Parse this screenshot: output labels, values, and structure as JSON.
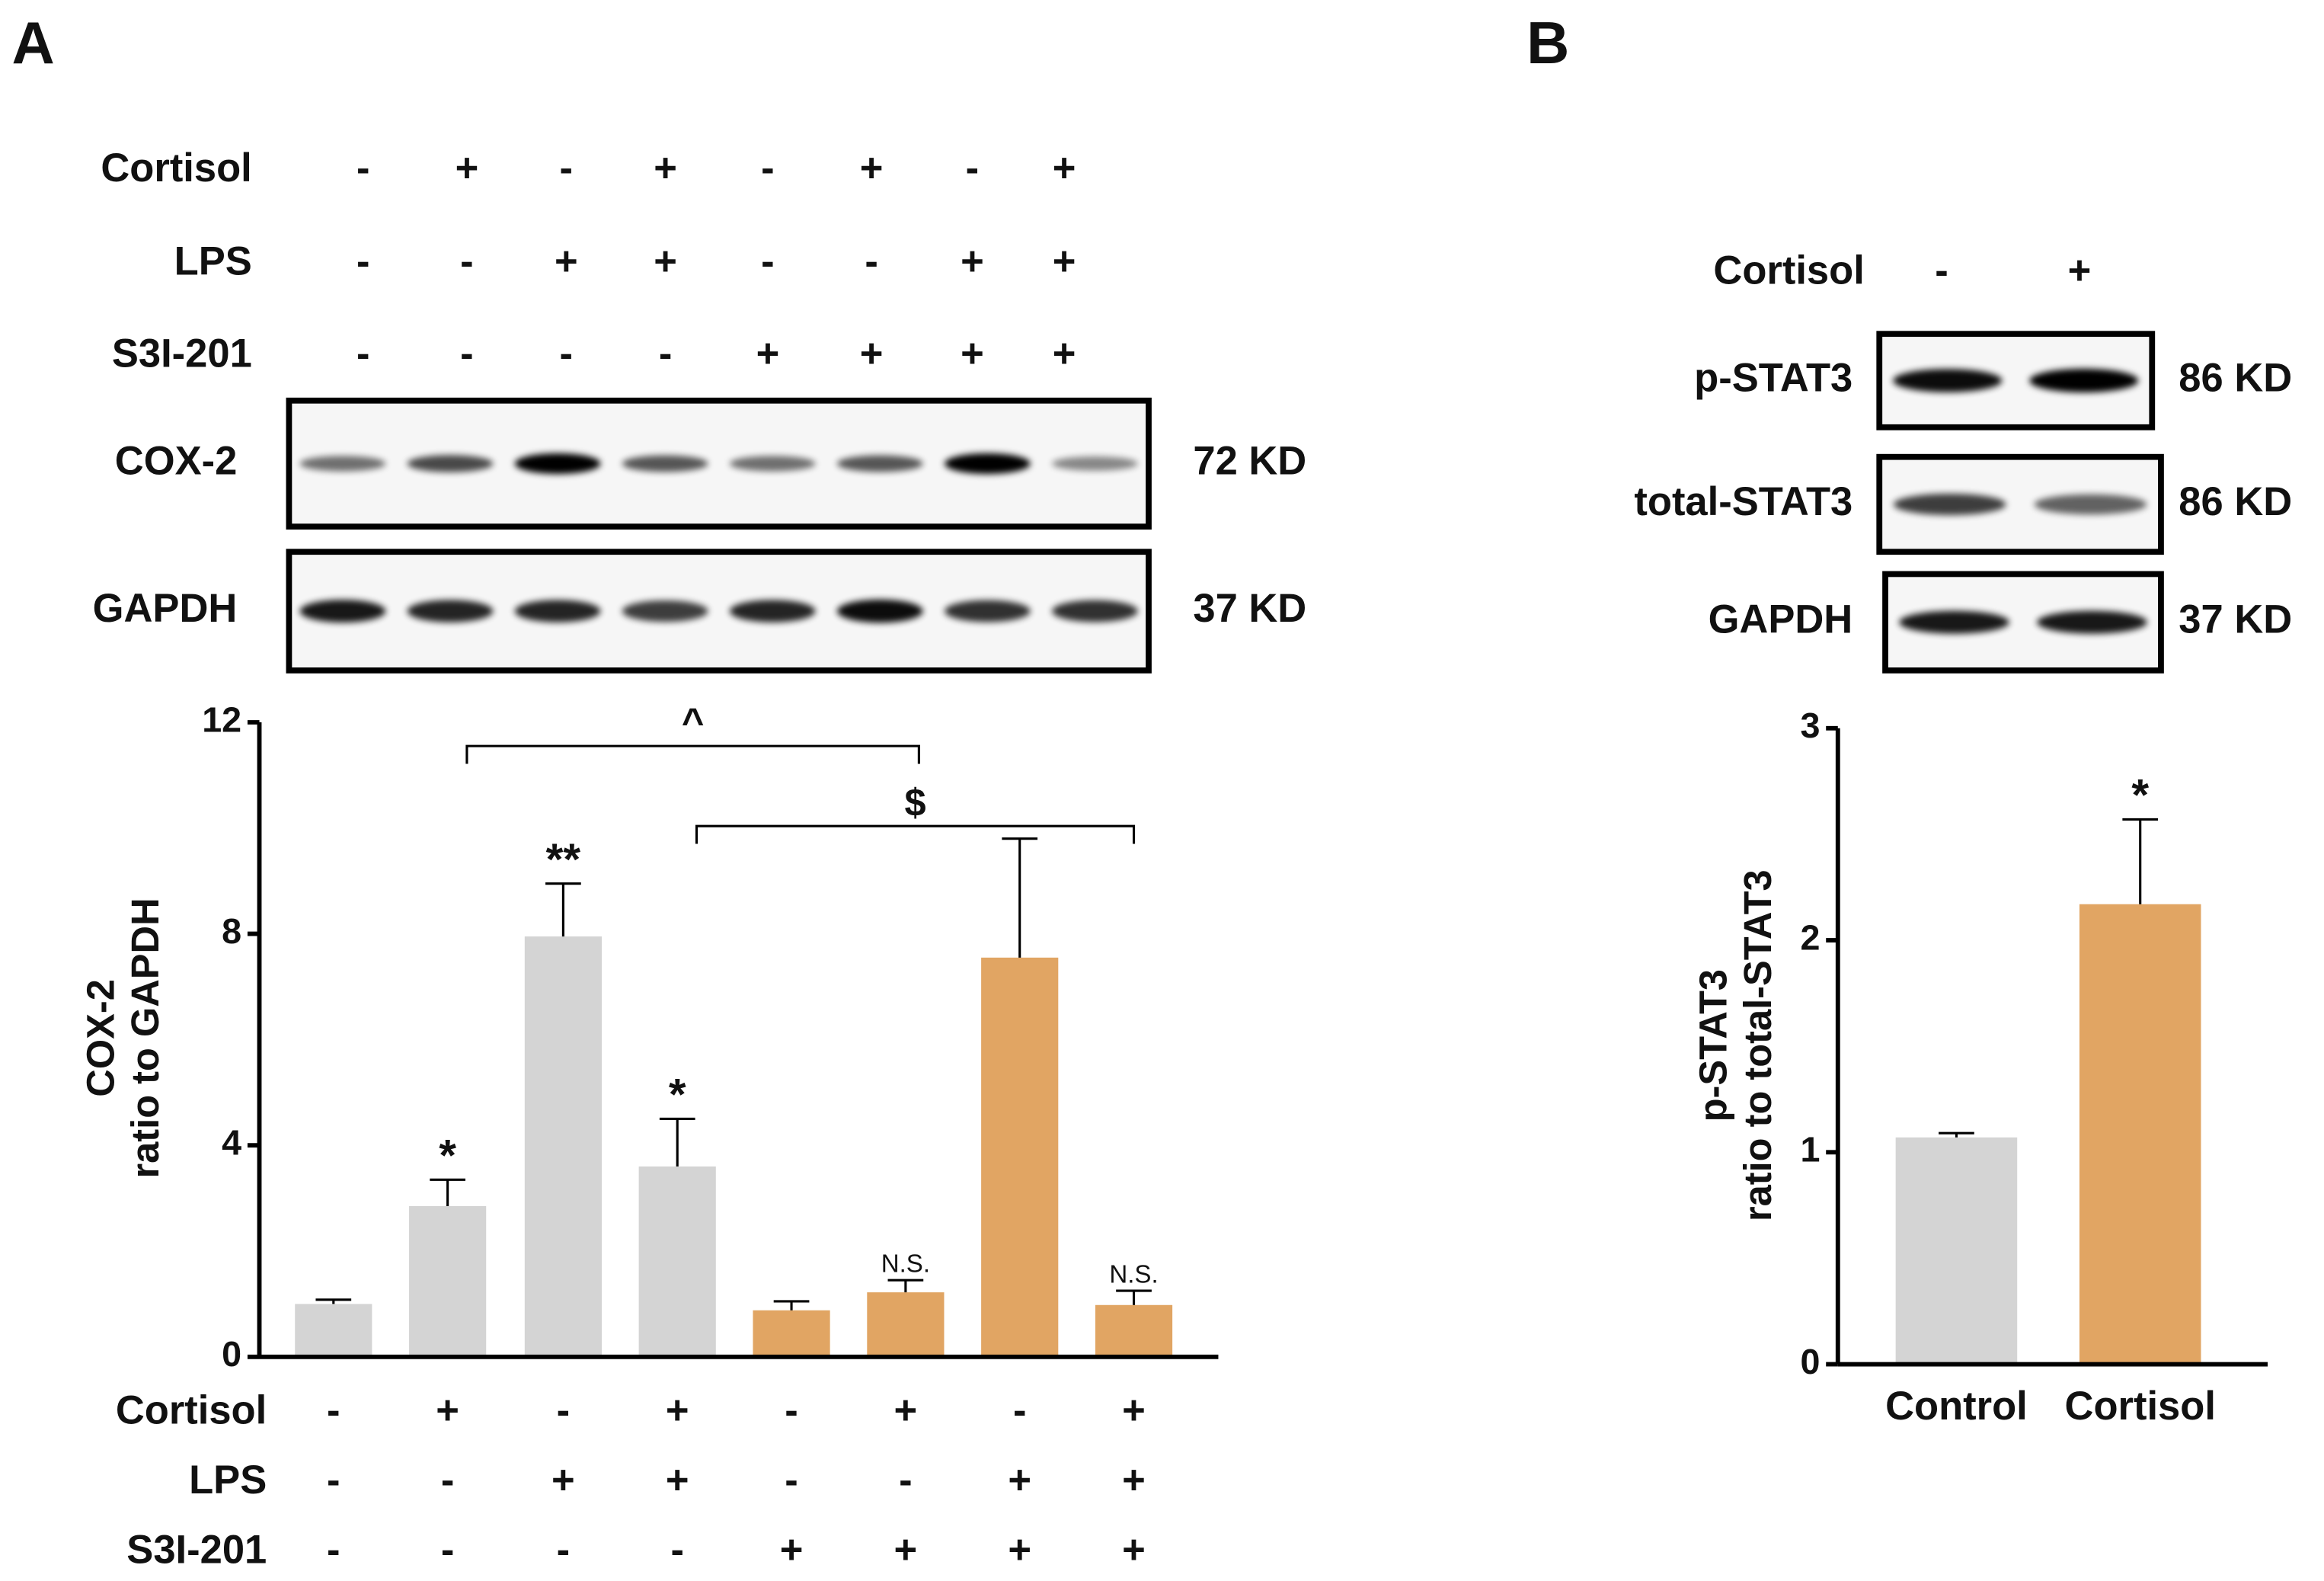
{
  "panels": [
    "A",
    "B"
  ],
  "blots": [
    {
      "conditions": [
        {
          "name": "Cortisol",
          "values": [
            "-",
            "+",
            "-",
            "+",
            "-",
            "+",
            "-",
            "+"
          ]
        },
        {
          "name": "LPS",
          "values": [
            "-",
            "-",
            "+",
            "+",
            "-",
            "-",
            "+",
            "+"
          ]
        },
        {
          "name": "S3I-201",
          "values": [
            "-",
            "-",
            "-",
            "-",
            "+",
            "+",
            "+",
            "+"
          ]
        }
      ],
      "rows": [
        {
          "label": "COX-2",
          "size": "72 KD"
        },
        {
          "label": "GAPDH",
          "size": "37 KD"
        }
      ]
    },
    {
      "conditions": [
        {
          "name": "Cortisol",
          "values": [
            "-",
            "+"
          ]
        }
      ],
      "rows": [
        {
          "label": "p-STAT3",
          "size": "86 KD"
        },
        {
          "label": "total-STAT3",
          "size": "86 KD"
        },
        {
          "label": "GAPDH",
          "size": "37 KD"
        }
      ]
    }
  ],
  "chart_data": [
    {
      "type": "bar",
      "ylabel": [
        "COX-2",
        "ratio to GAPDH"
      ],
      "values": [
        1.0,
        2.85,
        7.95,
        3.6,
        0.88,
        1.22,
        7.55,
        0.98
      ],
      "errors": [
        0.08,
        0.5,
        1.0,
        0.9,
        0.17,
        0.23,
        2.25,
        0.27
      ],
      "colors": [
        "#d4d4d4",
        "#d4d4d4",
        "#d4d4d4",
        "#d4d4d4",
        "#e1a563",
        "#e1a563",
        "#e1a563",
        "#e1a563"
      ],
      "significance": [
        null,
        "*",
        "**",
        "*",
        null,
        "N.S.",
        null,
        "N.S."
      ],
      "comparisons": [
        {
          "from": 1,
          "to": 5,
          "label": "^"
        },
        {
          "from": 3,
          "to": 7,
          "label": "$"
        }
      ],
      "conditions": [
        {
          "name": "Cortisol",
          "values": [
            "-",
            "+",
            "-",
            "+",
            "-",
            "+",
            "-",
            "+"
          ]
        },
        {
          "name": "LPS",
          "values": [
            "-",
            "-",
            "+",
            "+",
            "-",
            "-",
            "+",
            "+"
          ]
        },
        {
          "name": "S3I-201",
          "values": [
            "-",
            "-",
            "-",
            "-",
            "+",
            "+",
            "+",
            "+"
          ]
        }
      ],
      "ylim": [
        0,
        12
      ],
      "yticks": [
        0,
        4,
        8,
        12
      ]
    },
    {
      "type": "bar",
      "ylabel": [
        "p-STAT3",
        "ratio to total-STAT3"
      ],
      "categories": [
        "Control",
        "Cortisol"
      ],
      "values": [
        1.07,
        2.17
      ],
      "errors": [
        0.02,
        0.4
      ],
      "colors": [
        "#d4d4d4",
        "#e1a563"
      ],
      "significance": [
        null,
        "*"
      ],
      "ylim": [
        0,
        3
      ],
      "yticks": [
        0,
        1,
        2,
        3
      ]
    }
  ]
}
